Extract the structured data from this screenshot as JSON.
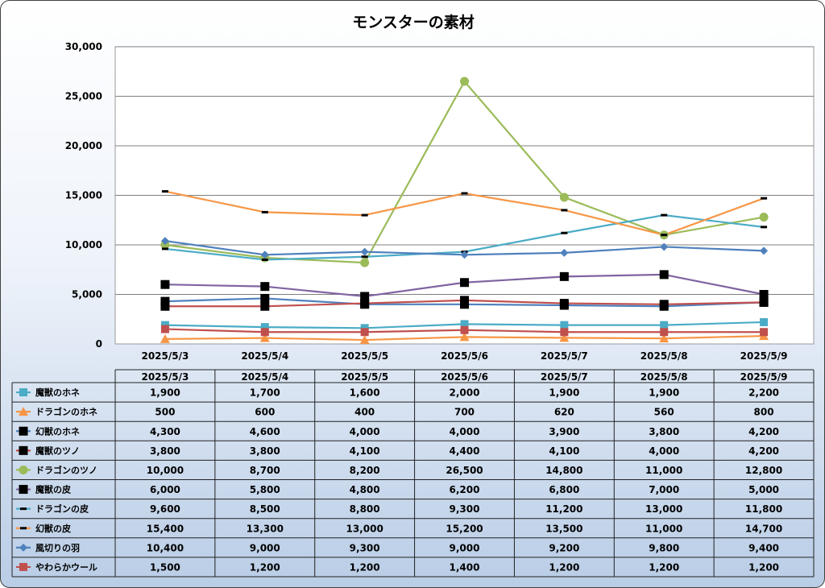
{
  "chart_data": {
    "type": "line",
    "title": "モンスターの素材",
    "xlabel": "",
    "ylabel": "",
    "ylim": [
      0,
      30000
    ],
    "yticks": [
      "0",
      "5,000",
      "10,000",
      "15,000",
      "20,000",
      "25,000",
      "30,000"
    ],
    "grid": true,
    "legend": "data-table",
    "categories": [
      "2025/5/3",
      "2025/5/4",
      "2025/5/5",
      "2025/5/6",
      "2025/5/7",
      "2025/5/8",
      "2025/5/9"
    ],
    "series": [
      {
        "name": "魔獣のホネ",
        "color": "#4bacc6",
        "marker": "square",
        "values": [
          1900,
          1700,
          1600,
          2000,
          1900,
          1900,
          2200
        ],
        "labels": [
          "1,900",
          "1,700",
          "1,600",
          "2,000",
          "1,900",
          "1,900",
          "2,200"
        ]
      },
      {
        "name": "ドラゴンのホネ",
        "color": "#f79646",
        "marker": "triangle",
        "values": [
          500,
          600,
          400,
          700,
          620,
          560,
          800
        ],
        "labels": [
          "500",
          "600",
          "400",
          "700",
          "620",
          "560",
          "800"
        ]
      },
      {
        "name": "幻獣のホネ",
        "color": "#4f81bd",
        "marker": "bigsquare",
        "values": [
          4300,
          4600,
          4000,
          4000,
          3900,
          3800,
          4200
        ],
        "labels": [
          "4,300",
          "4,600",
          "4,000",
          "4,000",
          "3,900",
          "3,800",
          "4,200"
        ]
      },
      {
        "name": "魔獣のツノ",
        "color": "#c0504d",
        "marker": "bigsquare",
        "values": [
          3800,
          3800,
          4100,
          4400,
          4100,
          4000,
          4200
        ],
        "labels": [
          "3,800",
          "3,800",
          "4,100",
          "4,400",
          "4,100",
          "4,000",
          "4,200"
        ]
      },
      {
        "name": "ドラゴンのツノ",
        "color": "#9bbb59",
        "marker": "circle",
        "values": [
          10000,
          8700,
          8200,
          26500,
          14800,
          11000,
          12800
        ],
        "labels": [
          "10,000",
          "8,700",
          "8,200",
          "26,500",
          "14,800",
          "11,000",
          "12,800"
        ]
      },
      {
        "name": "魔獣の皮",
        "color": "#8064a2",
        "marker": "bigsquare",
        "values": [
          6000,
          5800,
          4800,
          6200,
          6800,
          7000,
          5000
        ],
        "labels": [
          "6,000",
          "5,800",
          "4,800",
          "6,200",
          "6,800",
          "7,000",
          "5,000"
        ]
      },
      {
        "name": "ドラゴンの皮",
        "color": "#4bacc6",
        "marker": "dash",
        "values": [
          9600,
          8500,
          8800,
          9300,
          11200,
          13000,
          11800
        ],
        "labels": [
          "9,600",
          "8,500",
          "8,800",
          "9,300",
          "11,200",
          "13,000",
          "11,800"
        ]
      },
      {
        "name": "幻獣の皮",
        "color": "#f79646",
        "marker": "dash",
        "values": [
          15400,
          13300,
          13000,
          15200,
          13500,
          11000,
          14700
        ],
        "labels": [
          "15,400",
          "13,300",
          "13,000",
          "15,200",
          "13,500",
          "11,000",
          "14,700"
        ]
      },
      {
        "name": "風切りの羽",
        "color": "#4f81bd",
        "marker": "diamond",
        "values": [
          10400,
          9000,
          9300,
          9000,
          9200,
          9800,
          9400
        ],
        "labels": [
          "10,400",
          "9,000",
          "9,300",
          "9,000",
          "9,200",
          "9,800",
          "9,400"
        ]
      },
      {
        "name": "やわらかウール",
        "color": "#c0504d",
        "marker": "square",
        "values": [
          1500,
          1200,
          1200,
          1400,
          1200,
          1200,
          1200
        ],
        "labels": [
          "1,500",
          "1,200",
          "1,200",
          "1,400",
          "1,200",
          "1,200",
          "1,200"
        ]
      }
    ]
  }
}
